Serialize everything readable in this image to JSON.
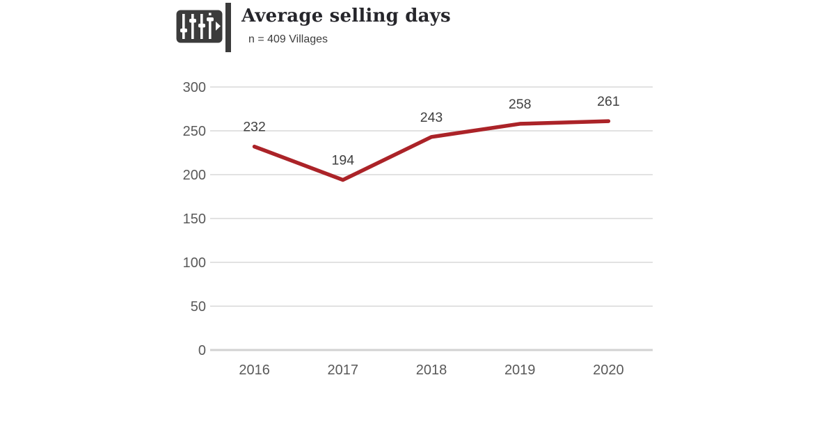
{
  "header": {
    "icon_name": "equalizer-play-icon",
    "title": "Average selling days",
    "subtitle": "n = 409 Villages"
  },
  "chart_data": {
    "type": "line",
    "title": "Average selling days",
    "subtitle": "n = 409 Villages",
    "categories": [
      "2016",
      "2017",
      "2018",
      "2019",
      "2020"
    ],
    "series": [
      {
        "name": "Average selling days",
        "values": [
          232,
          194,
          243,
          258,
          261
        ]
      }
    ],
    "data_labels": [
      "232",
      "194",
      "243",
      "258",
      "261"
    ],
    "xlabel": "",
    "ylabel": "",
    "ylim": [
      0,
      300
    ],
    "yticks": [
      0,
      50,
      100,
      150,
      200,
      250,
      300
    ],
    "grid": true,
    "legend": false,
    "colors": {
      "line": "#AB2328",
      "gridline": "#D9D9D9",
      "axis_line": "#D2D2D2",
      "tick_label": "#595959",
      "data_label": "#404040",
      "title": "#26262B"
    }
  }
}
